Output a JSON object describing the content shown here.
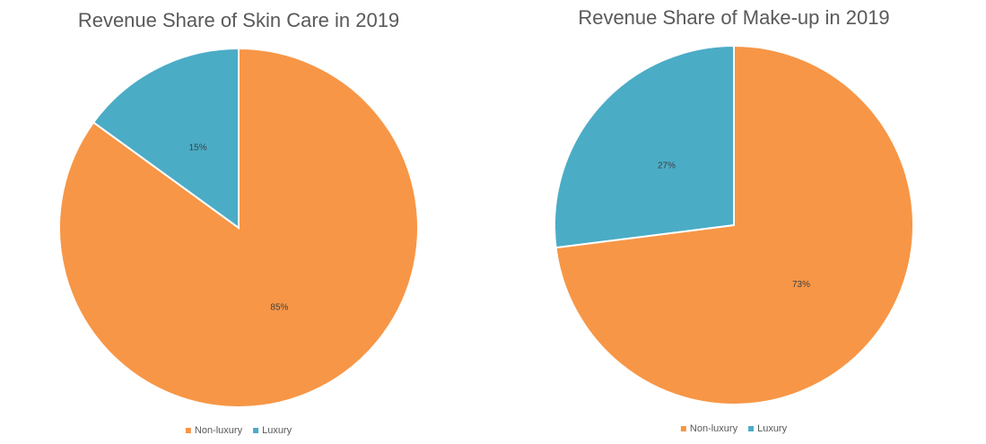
{
  "chart_data": [
    {
      "type": "pie",
      "title": "Revenue Share of Skin Care in 2019",
      "categories": [
        "Non-luxury",
        "Luxury"
      ],
      "values": [
        85,
        15
      ],
      "value_labels": [
        "85%",
        "15%"
      ],
      "colors": [
        "#F79646",
        "#4BACC6"
      ],
      "legend": "bottom"
    },
    {
      "type": "pie",
      "title": "Revenue Share of Make-up in 2019",
      "categories": [
        "Non-luxury",
        "Luxury"
      ],
      "values": [
        73,
        27
      ],
      "value_labels": [
        "73%",
        "27%"
      ],
      "colors": [
        "#F79646",
        "#4BACC6"
      ],
      "legend": "bottom"
    }
  ]
}
